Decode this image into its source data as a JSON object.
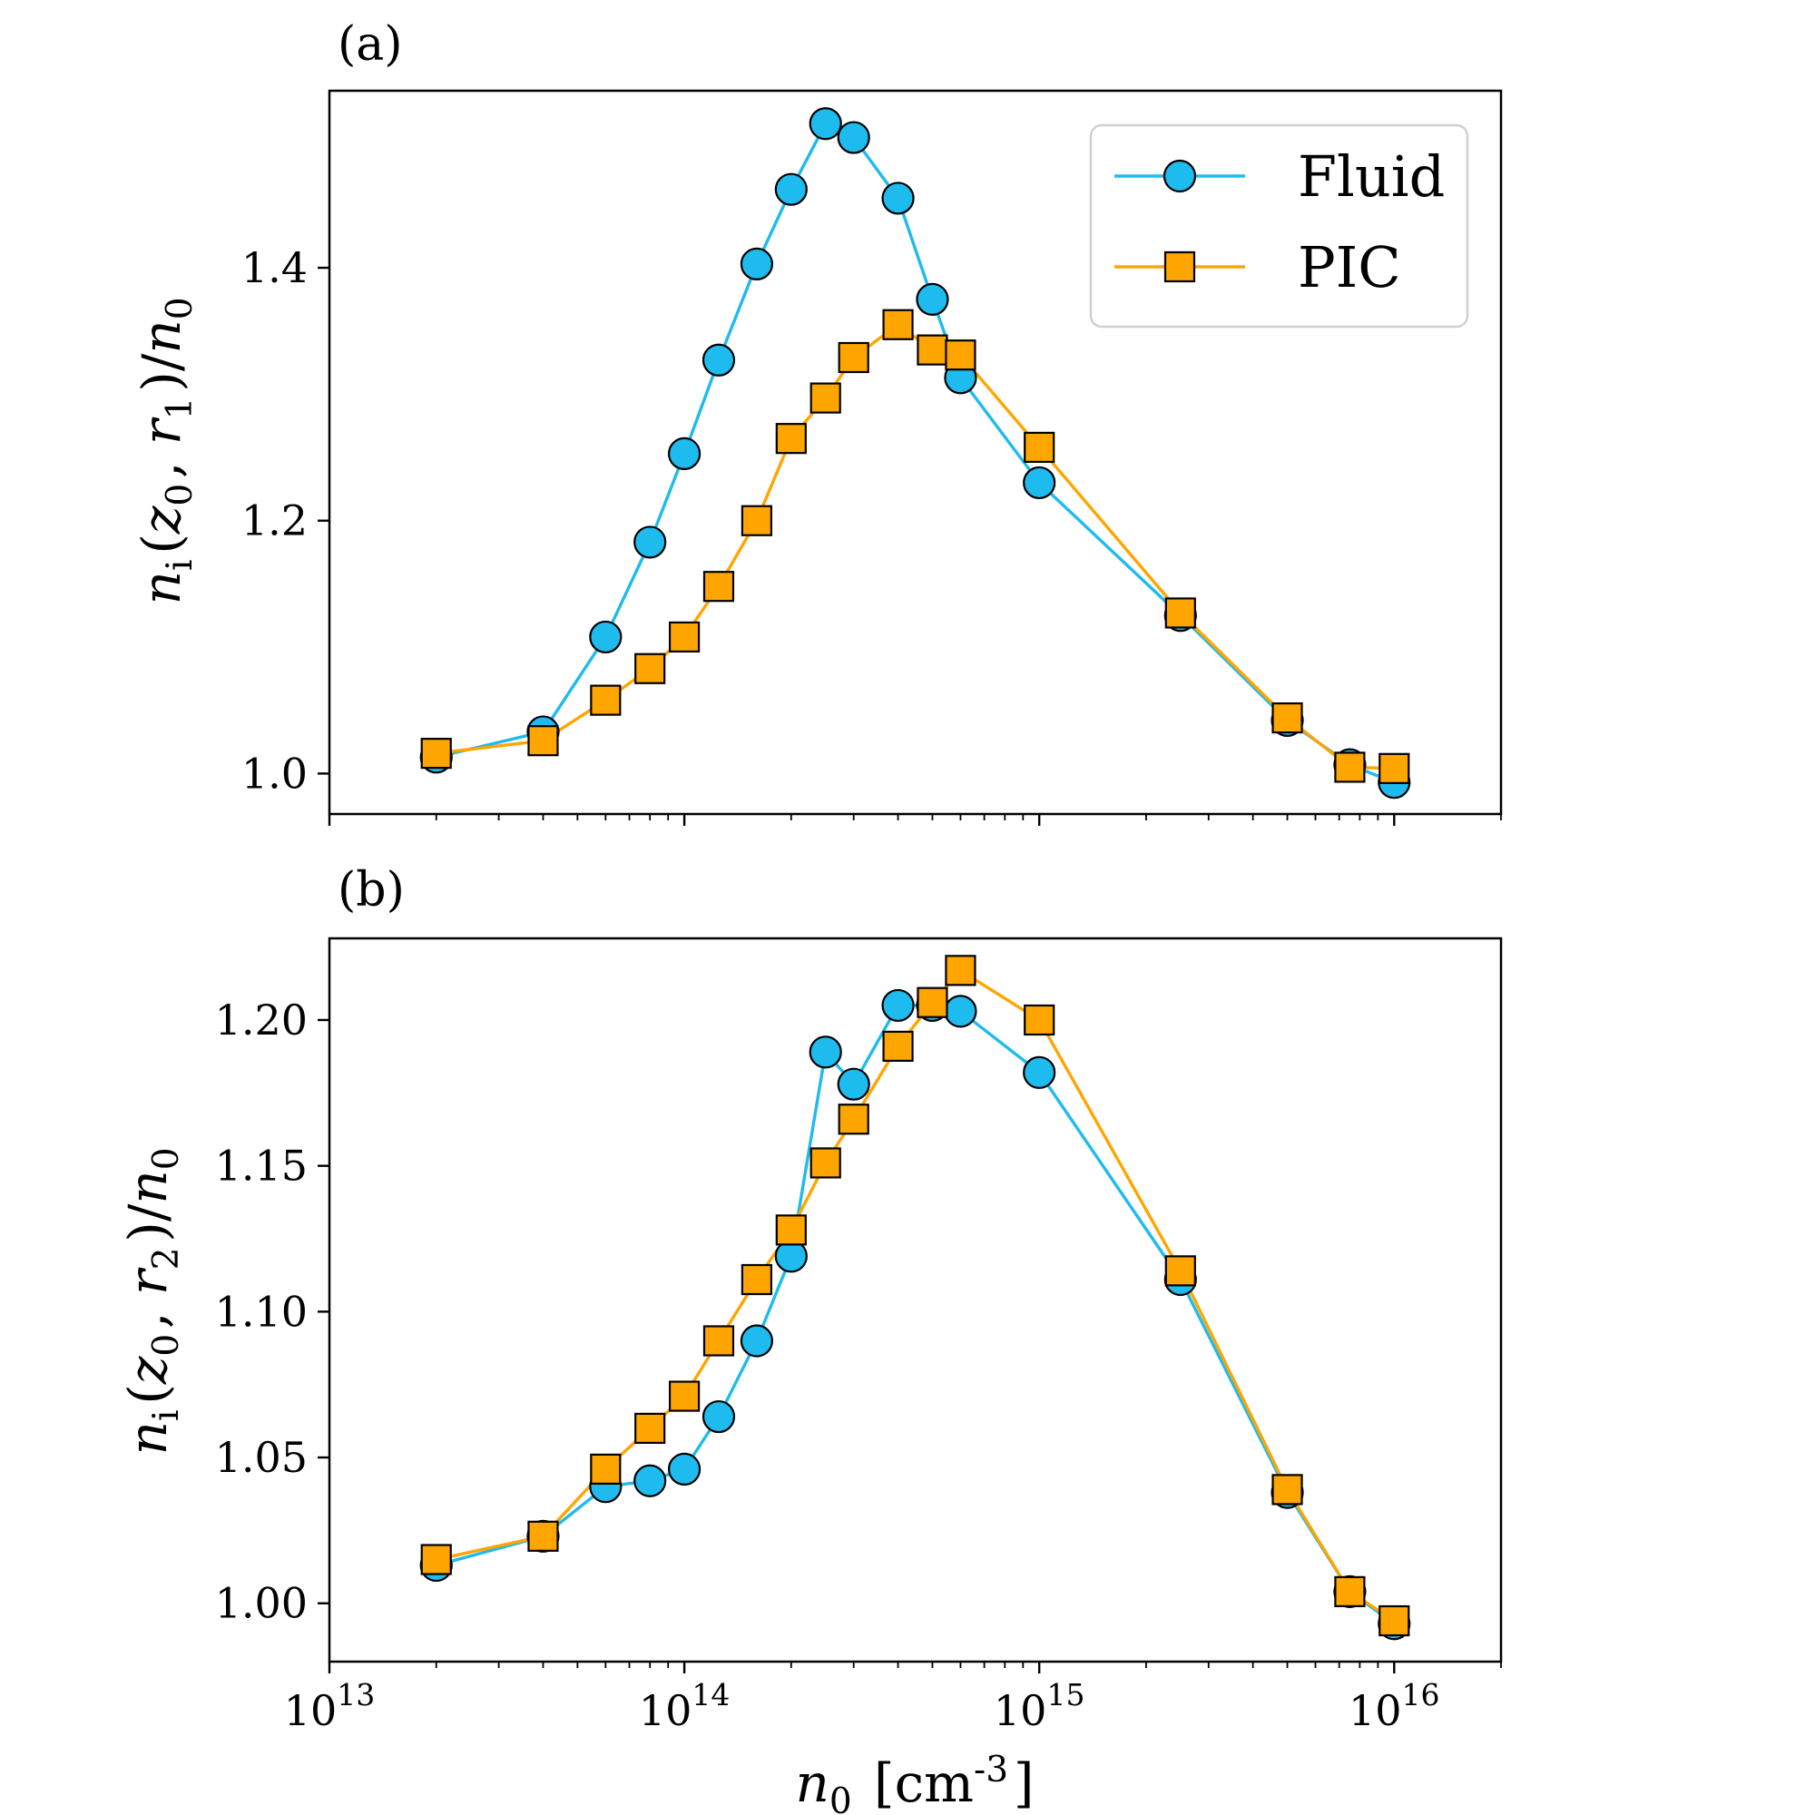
{
  "chart_data": [
    {
      "type": "line",
      "panel_label": "(a)",
      "xscale": "log",
      "xlim": [
        10000000000000.0,
        2e+16
      ],
      "ylim": [
        0.968,
        1.54
      ],
      "yticks": [
        1.0,
        1.2,
        1.4
      ],
      "ytick_labels": [
        "1.0",
        "1.2",
        "1.4"
      ],
      "ylabel": "n_i(z_0, r_1)/n_0",
      "show_xticklabels": false,
      "legend": {
        "position": "upper right",
        "entries": [
          "Fluid",
          "PIC"
        ]
      },
      "series": [
        {
          "name": "Fluid",
          "color": "#1ebbee",
          "marker": "circle",
          "x": [
            20000000000000.0,
            40000000000000.0,
            60000000000000.0,
            80000000000000.0,
            100000000000000.0,
            125000000000000.0,
            160000000000000.0,
            200000000000000.0,
            250000000000000.0,
            300000000000000.0,
            400000000000000.0,
            500000000000000.0,
            600000000000000.0,
            1000000000000000.0,
            2500000000000000.0,
            5000000000000000.0,
            7500000000000000.0,
            1e+16
          ],
          "y": [
            1.013,
            1.033,
            1.108,
            1.183,
            1.253,
            1.327,
            1.403,
            1.462,
            1.514,
            1.503,
            1.455,
            1.375,
            1.313,
            1.23,
            1.125,
            1.042,
            1.007,
            0.993
          ]
        },
        {
          "name": "PIC",
          "color": "#ffa500",
          "marker": "square",
          "x": [
            20000000000000.0,
            40000000000000.0,
            60000000000000.0,
            80000000000000.0,
            100000000000000.0,
            125000000000000.0,
            160000000000000.0,
            200000000000000.0,
            250000000000000.0,
            300000000000000.0,
            400000000000000.0,
            500000000000000.0,
            600000000000000.0,
            1000000000000000.0,
            2500000000000000.0,
            5000000000000000.0,
            7500000000000000.0,
            1e+16
          ],
          "y": [
            1.016,
            1.026,
            1.058,
            1.083,
            1.108,
            1.148,
            1.2,
            1.265,
            1.297,
            1.329,
            1.355,
            1.335,
            1.331,
            1.258,
            1.127,
            1.044,
            1.005,
            1.004
          ]
        }
      ]
    },
    {
      "type": "line",
      "panel_label": "(b)",
      "xscale": "log",
      "xlim": [
        10000000000000.0,
        2e+16
      ],
      "ylim": [
        0.98,
        1.228
      ],
      "yticks": [
        1.0,
        1.05,
        1.1,
        1.15,
        1.2
      ],
      "ytick_labels": [
        "1.00",
        "1.05",
        "1.10",
        "1.15",
        "1.20"
      ],
      "ylabel": "n_i(z_0, r_2)/n_0",
      "xlabel": "n_0 [cm^-3]",
      "xticks": [
        10000000000000.0,
        100000000000000.0,
        1000000000000000.0,
        1e+16
      ],
      "xtick_labels": [
        "10^13",
        "10^14",
        "10^15",
        "10^16"
      ],
      "show_xticklabels": true,
      "series": [
        {
          "name": "Fluid",
          "color": "#1ebbee",
          "marker": "circle",
          "x": [
            20000000000000.0,
            40000000000000.0,
            60000000000000.0,
            80000000000000.0,
            100000000000000.0,
            125000000000000.0,
            160000000000000.0,
            200000000000000.0,
            250000000000000.0,
            300000000000000.0,
            400000000000000.0,
            500000000000000.0,
            600000000000000.0,
            1000000000000000.0,
            2500000000000000.0,
            5000000000000000.0,
            7500000000000000.0,
            1e+16
          ],
          "y": [
            1.013,
            1.023,
            1.04,
            1.042,
            1.046,
            1.064,
            1.09,
            1.119,
            1.189,
            1.178,
            1.205,
            1.205,
            1.203,
            1.182,
            1.111,
            1.038,
            1.004,
            0.993
          ]
        },
        {
          "name": "PIC",
          "color": "#ffa500",
          "marker": "square",
          "x": [
            20000000000000.0,
            40000000000000.0,
            60000000000000.0,
            80000000000000.0,
            100000000000000.0,
            125000000000000.0,
            160000000000000.0,
            200000000000000.0,
            250000000000000.0,
            300000000000000.0,
            400000000000000.0,
            500000000000000.0,
            600000000000000.0,
            1000000000000000.0,
            2500000000000000.0,
            5000000000000000.0,
            7500000000000000.0,
            1e+16
          ],
          "y": [
            1.015,
            1.023,
            1.046,
            1.06,
            1.071,
            1.09,
            1.111,
            1.128,
            1.151,
            1.166,
            1.191,
            1.206,
            1.217,
            1.2,
            1.114,
            1.039,
            1.004,
            0.994
          ]
        }
      ]
    }
  ]
}
